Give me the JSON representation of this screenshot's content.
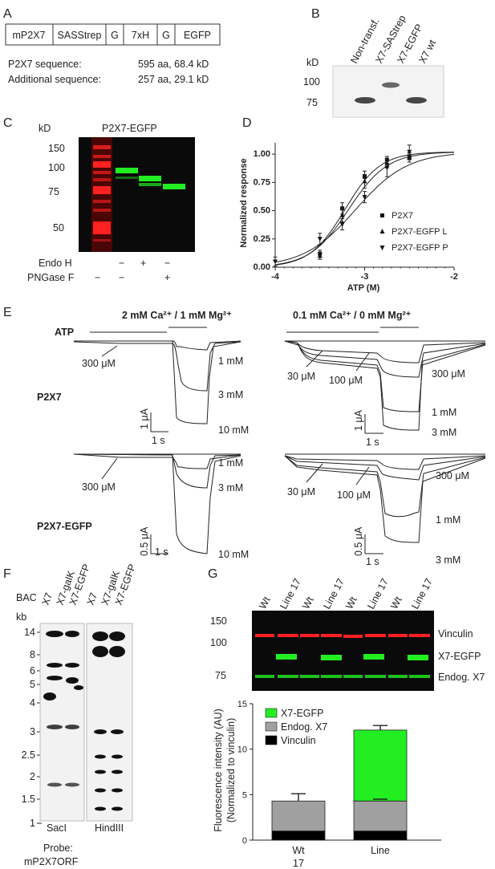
{
  "panel_labels": [
    "A",
    "B",
    "C",
    "D",
    "E",
    "F",
    "G"
  ],
  "panelA": {
    "construct": [
      "mP2X7",
      "SASStrep",
      "G",
      "7xH",
      "G",
      "EGFP"
    ],
    "rows": [
      {
        "label": "P2X7 sequence:",
        "value": "595 aa, 68.4 kD"
      },
      {
        "label": "Additional sequence:",
        "value": "257 aa, 29.1 kD"
      }
    ]
  },
  "panelB": {
    "unit": "kD",
    "lanes": [
      "Non-transf.",
      "X7-SAStrep",
      "X7-EGFP",
      "X7 wt"
    ],
    "markers": [
      "100",
      "75"
    ]
  },
  "panelC": {
    "title": "P2X7-EGFP",
    "unit": "kD",
    "markers": [
      "150",
      "100",
      "75",
      "50"
    ],
    "row_labels": [
      "Endo H",
      "PNGase F"
    ],
    "treatments": [
      [
        "−",
        "+",
        "−"
      ],
      [
        "−",
        "−",
        "+"
      ]
    ]
  },
  "panelD": {
    "chart_data": {
      "type": "line",
      "xlabel": "ATP (M)",
      "ylabel": "Normalized response",
      "xlim": [
        -4,
        -2
      ],
      "ylim": [
        0,
        1.1
      ],
      "xticks": [
        "-4",
        "-3",
        "-2"
      ],
      "yticks": [
        "0.00",
        "0.25",
        "0.50",
        "0.75",
        "1.00"
      ],
      "legend_position": "right",
      "series": [
        {
          "name": "P2X7",
          "marker": "square",
          "x": [
            -3.5,
            -3.25,
            -3.0,
            -2.75,
            -2.5
          ],
          "y": [
            0.12,
            0.52,
            0.8,
            0.95,
            0.98
          ],
          "err": [
            0.03,
            0.05,
            0.05,
            0.03,
            0.03
          ],
          "ec50": -3.22,
          "hill": 2.2
        },
        {
          "name": "P2X7-EGFP L",
          "marker": "triangle-up",
          "x": [
            -3.5,
            -3.25,
            -3.0,
            -2.75,
            -2.5
          ],
          "y": [
            0.1,
            0.46,
            0.76,
            0.92,
            0.97
          ],
          "err": [
            0.03,
            0.06,
            0.06,
            0.04,
            0.04
          ],
          "ec50": -3.18,
          "hill": 2.0
        },
        {
          "name": "P2X7-EGFP P",
          "marker": "triangle-down",
          "x": [
            -4.0,
            -3.5,
            -3.25,
            -3.0,
            -2.75,
            -2.5
          ],
          "y": [
            0.05,
            0.25,
            0.38,
            0.62,
            0.88,
            1.02
          ],
          "err": [
            0.04,
            0.05,
            0.05,
            0.05,
            0.08,
            0.06
          ],
          "ec50": -3.1,
          "hill": 1.5
        }
      ]
    }
  },
  "panelE": {
    "atp_label": "ATP",
    "left_condition": "2 mM Ca²⁺ / 1 mM Mg²⁺",
    "right_condition": "0.1 mM Ca²⁺ / 0 mM Mg²⁺",
    "rows": [
      "P2X7",
      "P2X7-EGFP"
    ],
    "left_top": {
      "labels": [
        "300 μM",
        "1 mM",
        "3 mM",
        "10 mM"
      ],
      "scale_y": "1 μA",
      "scale_x": "1 s"
    },
    "left_bottom": {
      "labels": [
        "300 μM",
        "1 mM",
        "3 mM",
        "10 mM"
      ],
      "scale_y": "0.5 μA",
      "scale_x": "1 s"
    },
    "right_top": {
      "labels": [
        "30 μM",
        "100 μM",
        "300 μM",
        "1 mM",
        "3 mM"
      ],
      "scale_y": "1 μA",
      "scale_x": "1 s"
    },
    "right_bottom": {
      "labels": [
        "30 μM",
        "100 μM",
        "300 μM",
        "1 mM",
        "3 mM"
      ],
      "scale_y": "0.5 μA",
      "scale_x": "1 s"
    }
  },
  "panelF": {
    "bac_label": "BAC",
    "unit": "kb",
    "lanes": [
      "X7",
      "X7-galK",
      "X7-EGFP",
      "X7",
      "X7-galK",
      "X7-EGFP"
    ],
    "markers": [
      "14",
      "8",
      "6",
      "5",
      "4",
      "3",
      "2.5",
      "2",
      "1.5",
      "1"
    ],
    "enzymes": [
      "SacI",
      "HindIII"
    ],
    "probe": [
      "Probe:",
      "mP2X7ORF"
    ]
  },
  "panelG": {
    "lanes": [
      "Wt",
      "Line 17",
      "Wt",
      "Line 17",
      "Wt",
      "Line 17",
      "Wt",
      "Line 17"
    ],
    "markers": [
      "150",
      "100",
      "75"
    ],
    "band_labels": [
      "Vinculin",
      "X7-EGFP",
      "Endog. X7"
    ],
    "chart_data": {
      "type": "bar",
      "categories": [
        "Wt 17",
        "Line"
      ],
      "ylabel": "Fluorescence intensity (AU)",
      "ylabel2": "(Normalized to vinculin)",
      "ylim": [
        0,
        15
      ],
      "yticks": [
        "0",
        "5",
        "10",
        "15"
      ],
      "legend_position": "top-left",
      "series": [
        {
          "name": "Vinculin",
          "values": [
            1,
            1
          ],
          "color": "#000000"
        },
        {
          "name": "Endog. X7",
          "values": [
            3.3,
            3.3
          ],
          "color": "#a0a0a0"
        },
        {
          "name": "X7-EGFP",
          "values": [
            0,
            7.8
          ],
          "color": "#22ee22"
        }
      ],
      "errors_top": [
        [
          5.1
        ],
        [
          12.6
        ]
      ],
      "errors_mid": [
        [],
        [
          4.5
        ]
      ]
    }
  },
  "colors": {
    "red_band": "#ff2020",
    "green_band": "#22ee22",
    "blot_bg": "#0a0a0a"
  }
}
